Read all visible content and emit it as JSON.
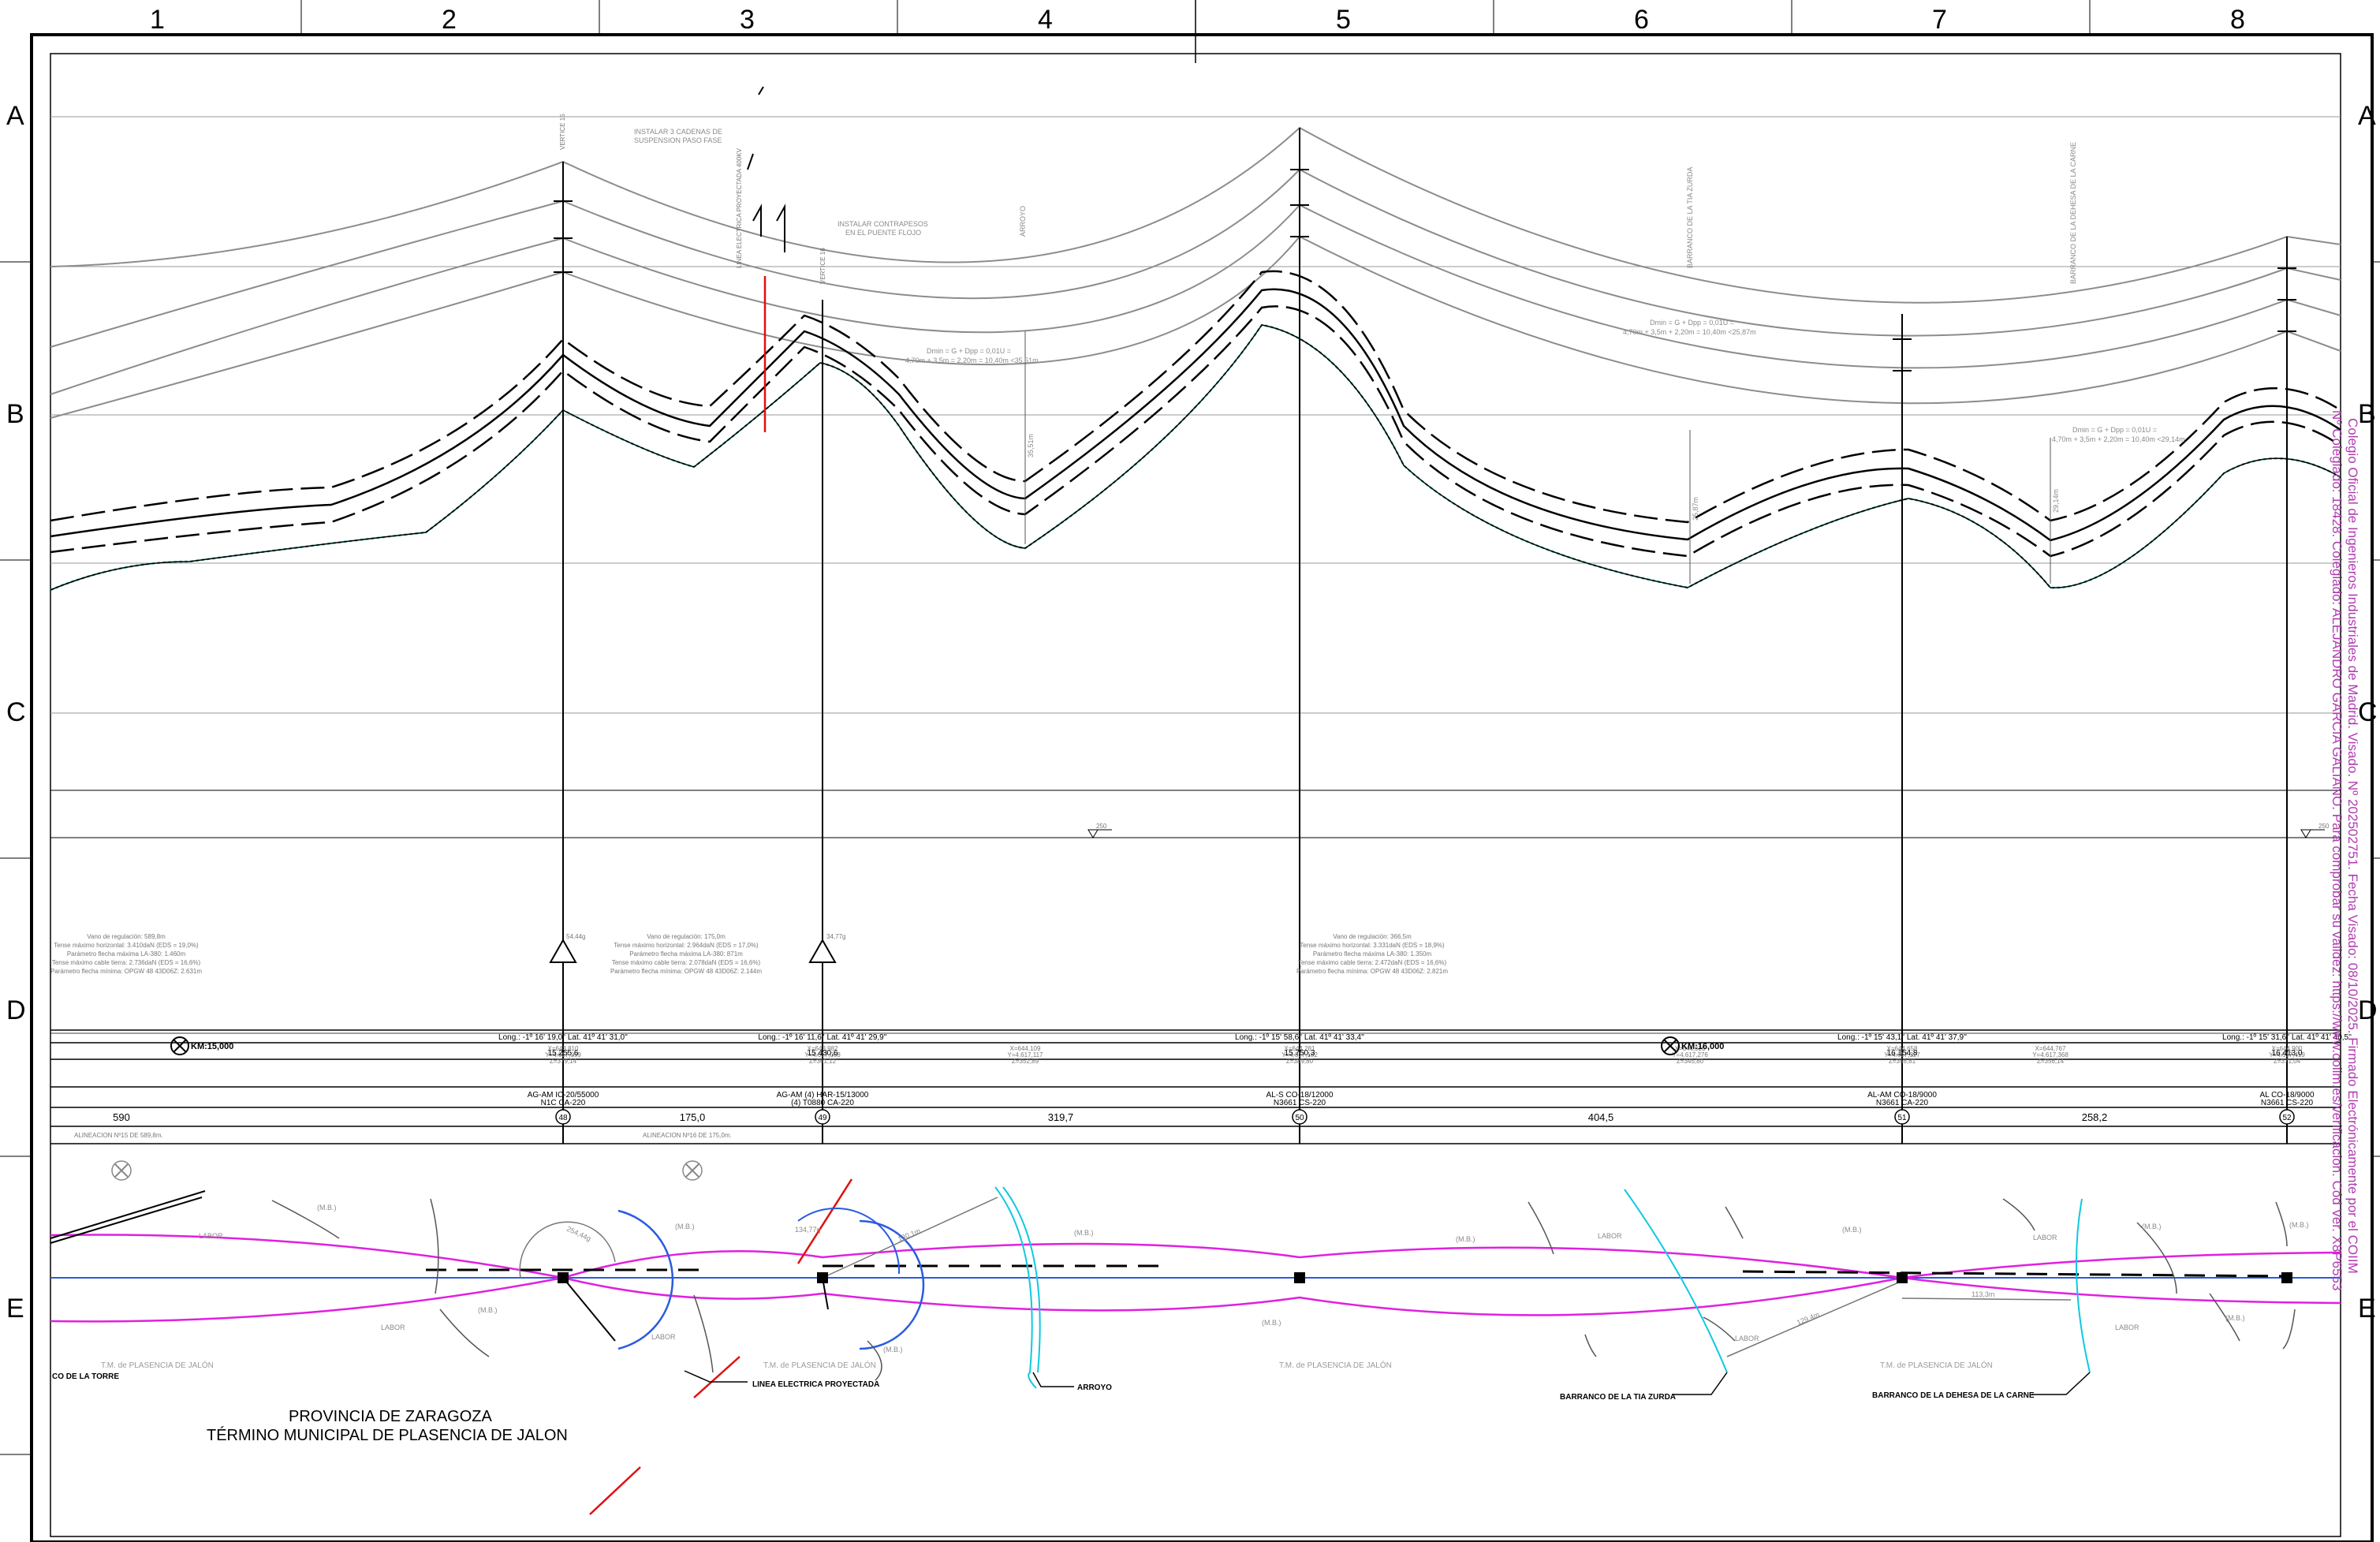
{
  "grid": {
    "columns": [
      "1",
      "2",
      "3",
      "4",
      "5",
      "6",
      "7",
      "8"
    ],
    "rows": [
      "A",
      "B",
      "C",
      "D",
      "E"
    ]
  },
  "annotations": {
    "vertex15": "VERTICE 15",
    "vertex16": "VERTICE 16",
    "chains": [
      "INSTALAR 3 CADENAS DE",
      "SUSPENSION PASO FASE"
    ],
    "counterweights": [
      "INSTALAR CONTRAPESOS",
      "EN EL PUENTE FLOJO"
    ],
    "projected_line_vertical": "LINEA ELECTRICA PROYECTADA 400KV",
    "arroyo_vertical": "ARROYO",
    "barranco_tia_vertical": "BARRANCO DE LA TIA ZURDA",
    "barranco_dehesa_vertical": "BARRANCO DE LA DEHESA DE LA CARNE",
    "clear_1": [
      "Dmin = G + Dpp = 0,01U =",
      "4,70m + 3,5m = 2,20m = 10,40m <35,51m"
    ],
    "clear_2": [
      "Dmin = G + Dpp = 0,01U =",
      "4,70m + 3,5m + 2,20m = 10,40m <25,87m"
    ],
    "clear_3": [
      "Dmin = G + Dpp = 0,01U =",
      "4,70m + 3,5m + 2,20m = 10,40m <29,14m"
    ],
    "dist_1": "35,51m",
    "dist_2": "25,87m",
    "dist_3": "29,14m",
    "datum_1": "250",
    "datum_2": "250",
    "load_1": "54,44g",
    "load_2": "34,77g"
  },
  "span_notes": {
    "left": [
      "Vano de regulación: 589,8m",
      "Tense máximo horizontal: 3.410daN (EDS = 19,0%)",
      "Parámetro flecha máxima LA-380: 1.460m",
      "Tense máximo cable tierra: 2.736daN (EDS = 16,6%)",
      "Parámetro flecha mínima: OPGW 48 43D06Z: 2.631m"
    ],
    "middle": [
      "Vano de regulación: 175,0m",
      "Tense máximo horizontal: 2.964daN (EDS = 17,0%)",
      "Parámetro flecha máxima LA-380: 871m",
      "Tense máximo cable tierra: 2.078daN (EDS = 16,6%)",
      "Parámetro flecha mínima: OPGW 48 43D06Z: 2.144m"
    ],
    "right": [
      "Vano de regulación: 366,5m",
      "Tense máximo horizontal: 3.331daN (EDS = 18,9%)",
      "Parámetro flecha máxima LA-380: 1.350m",
      "Tense máximo cable tierra: 2.472daN (EDS = 16,6%)",
      "Parámetro flecha mínima: OPGW 48 43D06Z: 2.821m"
    ]
  },
  "guitar": {
    "geo": [
      "Long.: -1º 16' 19,0'' Lat. 41º 41' 31,0''",
      "Long.: -1º 16' 11,6'' Lat. 41º 41' 29,9''",
      "Long.: -1º 15' 58,6'' Lat. 41º 41' 33,4''",
      "Long.: -1º 15' 43,1'' Lat. 41º 41' 37,9''",
      "Long.: -1º 15' 31,6'' Lat. 41º 41' 40,5''"
    ],
    "coords": [
      [
        "X=643,810",
        "Y=4.617,099",
        "Z=379,14"
      ],
      [
        "X=643,982",
        "Y=4.617,068",
        "Z=361,12"
      ],
      [
        "X=644,109",
        "Y=4.617,117",
        "Z=352,89"
      ],
      [
        "X=644,281",
        "Y=4.617,182",
        "Z=389,80"
      ],
      [
        "X=644,626",
        "Y=4.617,276",
        "Z=345,80"
      ],
      [
        "X=644,658",
        "Y=4.617,327",
        "Z=358,81"
      ],
      [
        "X=644,767",
        "Y=4.617,368",
        "Z=356,14"
      ],
      [
        "X=644,900",
        "Y=4.617,419",
        "Z=371,04"
      ]
    ],
    "km_labels": [
      "KM:15,000",
      "KM:16,000"
    ],
    "chainage": [
      "15.255,6",
      "15.430,6",
      "15.750,3",
      "16.154,8",
      "16.413,0"
    ],
    "tower_types": [
      [
        "AG-AM IC-20/55000",
        "N1C CA-220"
      ],
      [
        "AG-AM (4) HAR-15/13000",
        "(4) T0880 CA-220"
      ],
      [
        "AL-S CO-18/12000",
        "N3661 CS-220"
      ],
      [
        "AL-AM CO-18/9000",
        "N3661 CA-220"
      ],
      [
        "AL CO-18/9000",
        "N3661 CS-220"
      ]
    ],
    "spans": [
      "590",
      "175,0",
      "319,7",
      "404,5",
      "258,2"
    ],
    "towers": [
      "48",
      "49",
      "50",
      "51",
      "52"
    ],
    "alignments": [
      "ALINEACION Nº15 DE 589,8m.",
      "ALINEACION Nº16 DE 175,0m."
    ]
  },
  "plan": {
    "labor": "LABOR",
    "mb": "(M.B.)",
    "municipality": "T.M. de PLASENCIA DE JALÓN",
    "torre": "CO DE LA TORRE",
    "projected_line": "LINEA ELECTRICA PROYECTADA",
    "arroyo": "ARROYO",
    "barranco_tia": "BARRANCO DE LA TIA ZURDA",
    "barranco_dehesa": "BARRANCO DE LA DEHESA DE LA CARNE",
    "angle_1": "254,44g",
    "angle_2": "134,77g",
    "dim_1": "130,1m",
    "dim_2": "129,4m",
    "dim_3": "113,3m"
  },
  "title": {
    "province": "PROVINCIA DE ZARAGOZA",
    "municipality": "TÉRMINO MUNICIPAL DE PLASENCIA DE JALON"
  },
  "stamp": {
    "line1": "Colegio Oficial de Ingenieros Industriales de Madrid. Visado. Nº 202502751. Fecha Visado: 08/10/2025. Firmado Electrónicamente por el COIIM",
    "line2": "Nº Colegiado: 18428. Colegiado: ALEJANDRO GARCIA GALIANO. Para comprobar su validez: https://www.coiim.es/verificacion. Cód Ver. X8P6553"
  },
  "colors": {
    "terrain": "#2fb3a3",
    "profile": "#000000",
    "catenary": "#8c8c8c",
    "route": "#e020e0",
    "axis": "#2a5be0",
    "water": "#10c8e0",
    "projected": "#e01010",
    "stamp": "#b03ab0"
  }
}
